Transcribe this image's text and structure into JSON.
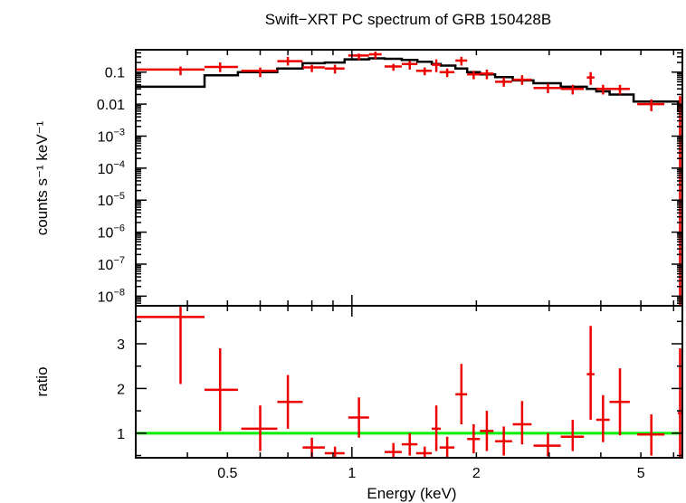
{
  "chart_data": {
    "type": "scatter",
    "title": "Swift−XRT PC spectrum of GRB 150428B",
    "xlabel": "Energy (keV)",
    "x_scale": "log",
    "xlim": [
      0.3,
      6.3
    ],
    "x_ticks": [
      {
        "value": 0.5,
        "label": "0.5"
      },
      {
        "value": 1,
        "label": "1"
      },
      {
        "value": 2,
        "label": "2"
      },
      {
        "value": 5,
        "label": "5"
      }
    ],
    "top_panel": {
      "ylabel": "counts s⁻¹ keV⁻¹",
      "y_scale": "log",
      "ylim": [
        5e-09,
        0.5
      ],
      "y_ticks": [
        {
          "value": 0.1,
          "label": "0.1"
        },
        {
          "value": 0.01,
          "label": "0.01"
        },
        {
          "value": 0.001,
          "base": "10",
          "exp": "−3"
        },
        {
          "value": 0.0001,
          "base": "10",
          "exp": "−4"
        },
        {
          "value": 1e-05,
          "base": "10",
          "exp": "−5"
        },
        {
          "value": 1e-06,
          "base": "10",
          "exp": "−6"
        },
        {
          "value": 1e-07,
          "base": "10",
          "exp": "−7"
        },
        {
          "value": 1e-08,
          "base": "10",
          "exp": "−8"
        }
      ],
      "data_color": "#ee0000",
      "model_color": "#000000",
      "data": [
        {
          "x": 0.385,
          "xlo": 0.3,
          "xhi": 0.44,
          "y": 0.12,
          "ylo": 0.08,
          "yhi": 0.15
        },
        {
          "x": 0.48,
          "xlo": 0.44,
          "xhi": 0.53,
          "y": 0.145,
          "ylo": 0.1,
          "yhi": 0.2
        },
        {
          "x": 0.6,
          "xlo": 0.54,
          "xhi": 0.66,
          "y": 0.11,
          "ylo": 0.07,
          "yhi": 0.14
        },
        {
          "x": 0.7,
          "xlo": 0.66,
          "xhi": 0.76,
          "y": 0.22,
          "ylo": 0.16,
          "yhi": 0.3
        },
        {
          "x": 0.8,
          "xlo": 0.76,
          "xhi": 0.86,
          "y": 0.14,
          "ylo": 0.1,
          "yhi": 0.17
        },
        {
          "x": 0.91,
          "xlo": 0.86,
          "xhi": 0.96,
          "y": 0.13,
          "ylo": 0.09,
          "yhi": 0.17
        },
        {
          "x": 1.04,
          "xlo": 0.98,
          "xhi": 1.1,
          "y": 0.33,
          "ylo": 0.24,
          "yhi": 0.38
        },
        {
          "x": 1.14,
          "xlo": 1.1,
          "xhi": 1.18,
          "y": 0.36,
          "ylo": 0.26,
          "yhi": 0.44
        },
        {
          "x": 1.26,
          "xlo": 1.2,
          "xhi": 1.32,
          "y": 0.15,
          "ylo": 0.11,
          "yhi": 0.18
        },
        {
          "x": 1.38,
          "xlo": 1.32,
          "xhi": 1.44,
          "y": 0.18,
          "ylo": 0.12,
          "yhi": 0.22
        },
        {
          "x": 1.5,
          "xlo": 1.43,
          "xhi": 1.56,
          "y": 0.11,
          "ylo": 0.08,
          "yhi": 0.14
        },
        {
          "x": 1.6,
          "xlo": 1.56,
          "xhi": 1.64,
          "y": 0.17,
          "ylo": 0.1,
          "yhi": 0.25
        },
        {
          "x": 1.7,
          "xlo": 1.63,
          "xhi": 1.77,
          "y": 0.1,
          "ylo": 0.07,
          "yhi": 0.13
        },
        {
          "x": 1.84,
          "xlo": 1.78,
          "xhi": 1.9,
          "y": 0.23,
          "ylo": 0.16,
          "yhi": 0.3
        },
        {
          "x": 1.97,
          "xlo": 1.9,
          "xhi": 2.04,
          "y": 0.085,
          "ylo": 0.06,
          "yhi": 0.11
        },
        {
          "x": 2.12,
          "xlo": 2.04,
          "xhi": 2.2,
          "y": 0.09,
          "ylo": 0.06,
          "yhi": 0.12
        },
        {
          "x": 2.33,
          "xlo": 2.22,
          "xhi": 2.44,
          "y": 0.05,
          "ylo": 0.035,
          "yhi": 0.068
        },
        {
          "x": 2.58,
          "xlo": 2.45,
          "xhi": 2.72,
          "y": 0.058,
          "ylo": 0.04,
          "yhi": 0.08
        },
        {
          "x": 2.98,
          "xlo": 2.75,
          "xhi": 3.2,
          "y": 0.032,
          "ylo": 0.022,
          "yhi": 0.043
        },
        {
          "x": 3.42,
          "xlo": 3.2,
          "xhi": 3.64,
          "y": 0.03,
          "ylo": 0.02,
          "yhi": 0.04
        },
        {
          "x": 3.78,
          "xlo": 3.7,
          "xhi": 3.86,
          "y": 0.068,
          "ylo": 0.04,
          "yhi": 0.1
        },
        {
          "x": 4.05,
          "xlo": 3.9,
          "xhi": 4.2,
          "y": 0.03,
          "ylo": 0.02,
          "yhi": 0.04
        },
        {
          "x": 4.45,
          "xlo": 4.2,
          "xhi": 4.7,
          "y": 0.03,
          "ylo": 0.02,
          "yhi": 0.04
        },
        {
          "x": 5.3,
          "xlo": 4.9,
          "xhi": 5.7,
          "y": 0.01,
          "ylo": 0.006,
          "yhi": 0.014
        },
        {
          "x": 6.22,
          "xlo": 6.14,
          "xhi": 6.3,
          "y": 0.008,
          "ylo": 5e-09,
          "yhi": 0.018
        }
      ],
      "model_steps": [
        {
          "x0": 0.3,
          "x1": 0.44,
          "y": 0.035
        },
        {
          "x0": 0.44,
          "x1": 0.53,
          "y": 0.08
        },
        {
          "x0": 0.53,
          "x1": 0.66,
          "y": 0.1
        },
        {
          "x0": 0.66,
          "x1": 0.76,
          "y": 0.13
        },
        {
          "x0": 0.76,
          "x1": 0.86,
          "y": 0.19
        },
        {
          "x0": 0.86,
          "x1": 0.96,
          "y": 0.2
        },
        {
          "x0": 0.96,
          "x1": 1.1,
          "y": 0.25
        },
        {
          "x0": 1.1,
          "x1": 1.2,
          "y": 0.27
        },
        {
          "x0": 1.2,
          "x1": 1.32,
          "y": 0.26
        },
        {
          "x0": 1.32,
          "x1": 1.44,
          "y": 0.24
        },
        {
          "x0": 1.44,
          "x1": 1.56,
          "y": 0.21
        },
        {
          "x0": 1.56,
          "x1": 1.64,
          "y": 0.18
        },
        {
          "x0": 1.64,
          "x1": 1.78,
          "y": 0.16
        },
        {
          "x0": 1.78,
          "x1": 1.9,
          "y": 0.13
        },
        {
          "x0": 1.9,
          "x1": 2.04,
          "y": 0.1
        },
        {
          "x0": 2.04,
          "x1": 2.22,
          "y": 0.085
        },
        {
          "x0": 2.22,
          "x1": 2.45,
          "y": 0.07
        },
        {
          "x0": 2.45,
          "x1": 2.75,
          "y": 0.055
        },
        {
          "x0": 2.75,
          "x1": 3.2,
          "y": 0.045
        },
        {
          "x0": 3.2,
          "x1": 3.7,
          "y": 0.035
        },
        {
          "x0": 3.7,
          "x1": 3.9,
          "y": 0.03
        },
        {
          "x0": 3.9,
          "x1": 4.2,
          "y": 0.025
        },
        {
          "x0": 4.2,
          "x1": 4.8,
          "y": 0.02
        },
        {
          "x0": 4.8,
          "x1": 6.15,
          "y": 0.012
        },
        {
          "x0": 6.15,
          "x1": 6.3,
          "y": 0.006
        }
      ]
    },
    "bottom_panel": {
      "ylabel": "ratio",
      "y_scale": "linear",
      "ylim": [
        0.45,
        3.85
      ],
      "y_ticks": [
        {
          "value": 1,
          "label": "1"
        },
        {
          "value": 2,
          "label": "2"
        },
        {
          "value": 3,
          "label": "3"
        }
      ],
      "reference_line": {
        "y": 1,
        "color": "#00ee00"
      },
      "data_color": "#ee0000",
      "data": [
        {
          "x": 0.385,
          "xlo": 0.3,
          "xhi": 0.44,
          "y": 3.6,
          "ylo": 2.1,
          "yhi": 3.85
        },
        {
          "x": 0.48,
          "xlo": 0.44,
          "xhi": 0.53,
          "y": 1.97,
          "ylo": 1.05,
          "yhi": 2.9
        },
        {
          "x": 0.6,
          "xlo": 0.54,
          "xhi": 0.66,
          "y": 1.1,
          "ylo": 0.6,
          "yhi": 1.62
        },
        {
          "x": 0.7,
          "xlo": 0.66,
          "xhi": 0.76,
          "y": 1.7,
          "ylo": 1.1,
          "yhi": 2.3
        },
        {
          "x": 0.8,
          "xlo": 0.76,
          "xhi": 0.86,
          "y": 0.68,
          "ylo": 0.45,
          "yhi": 0.9
        },
        {
          "x": 0.91,
          "xlo": 0.86,
          "xhi": 0.96,
          "y": 0.55,
          "ylo": 0.45,
          "yhi": 0.7
        },
        {
          "x": 1.04,
          "xlo": 0.98,
          "xhi": 1.1,
          "y": 1.35,
          "ylo": 0.9,
          "yhi": 1.8
        },
        {
          "x": 1.26,
          "xlo": 1.2,
          "xhi": 1.32,
          "y": 0.58,
          "ylo": 0.45,
          "yhi": 0.78
        },
        {
          "x": 1.38,
          "xlo": 1.32,
          "xhi": 1.44,
          "y": 0.75,
          "ylo": 0.5,
          "yhi": 1.0
        },
        {
          "x": 1.5,
          "xlo": 1.43,
          "xhi": 1.56,
          "y": 0.55,
          "ylo": 0.45,
          "yhi": 0.7
        },
        {
          "x": 1.6,
          "xlo": 1.56,
          "xhi": 1.64,
          "y": 1.1,
          "ylo": 0.6,
          "yhi": 1.62
        },
        {
          "x": 1.7,
          "xlo": 1.63,
          "xhi": 1.77,
          "y": 0.68,
          "ylo": 0.45,
          "yhi": 0.92
        },
        {
          "x": 1.84,
          "xlo": 1.78,
          "xhi": 1.9,
          "y": 1.87,
          "ylo": 1.2,
          "yhi": 2.55
        },
        {
          "x": 1.97,
          "xlo": 1.9,
          "xhi": 2.04,
          "y": 0.87,
          "ylo": 0.55,
          "yhi": 1.2
        },
        {
          "x": 2.12,
          "xlo": 2.04,
          "xhi": 2.2,
          "y": 1.05,
          "ylo": 0.6,
          "yhi": 1.5
        },
        {
          "x": 2.33,
          "xlo": 2.22,
          "xhi": 2.44,
          "y": 0.82,
          "ylo": 0.5,
          "yhi": 1.15
        },
        {
          "x": 2.58,
          "xlo": 2.45,
          "xhi": 2.72,
          "y": 1.2,
          "ylo": 0.75,
          "yhi": 1.72
        },
        {
          "x": 2.98,
          "xlo": 2.75,
          "xhi": 3.2,
          "y": 0.72,
          "ylo": 0.48,
          "yhi": 1.0
        },
        {
          "x": 3.42,
          "xlo": 3.2,
          "xhi": 3.64,
          "y": 0.92,
          "ylo": 0.6,
          "yhi": 1.3
        },
        {
          "x": 3.78,
          "xlo": 3.7,
          "xhi": 3.86,
          "y": 2.32,
          "ylo": 1.3,
          "yhi": 3.4
        },
        {
          "x": 4.05,
          "xlo": 3.9,
          "xhi": 4.2,
          "y": 1.3,
          "ylo": 0.8,
          "yhi": 1.85
        },
        {
          "x": 4.45,
          "xlo": 4.2,
          "xhi": 4.7,
          "y": 1.7,
          "ylo": 0.95,
          "yhi": 2.45
        },
        {
          "x": 5.3,
          "xlo": 4.9,
          "xhi": 5.7,
          "y": 0.97,
          "ylo": 0.5,
          "yhi": 1.42
        },
        {
          "x": 6.22,
          "xlo": 6.14,
          "xhi": 6.3,
          "y": 1.45,
          "ylo": 0.45,
          "yhi": 2.9
        }
      ]
    }
  }
}
